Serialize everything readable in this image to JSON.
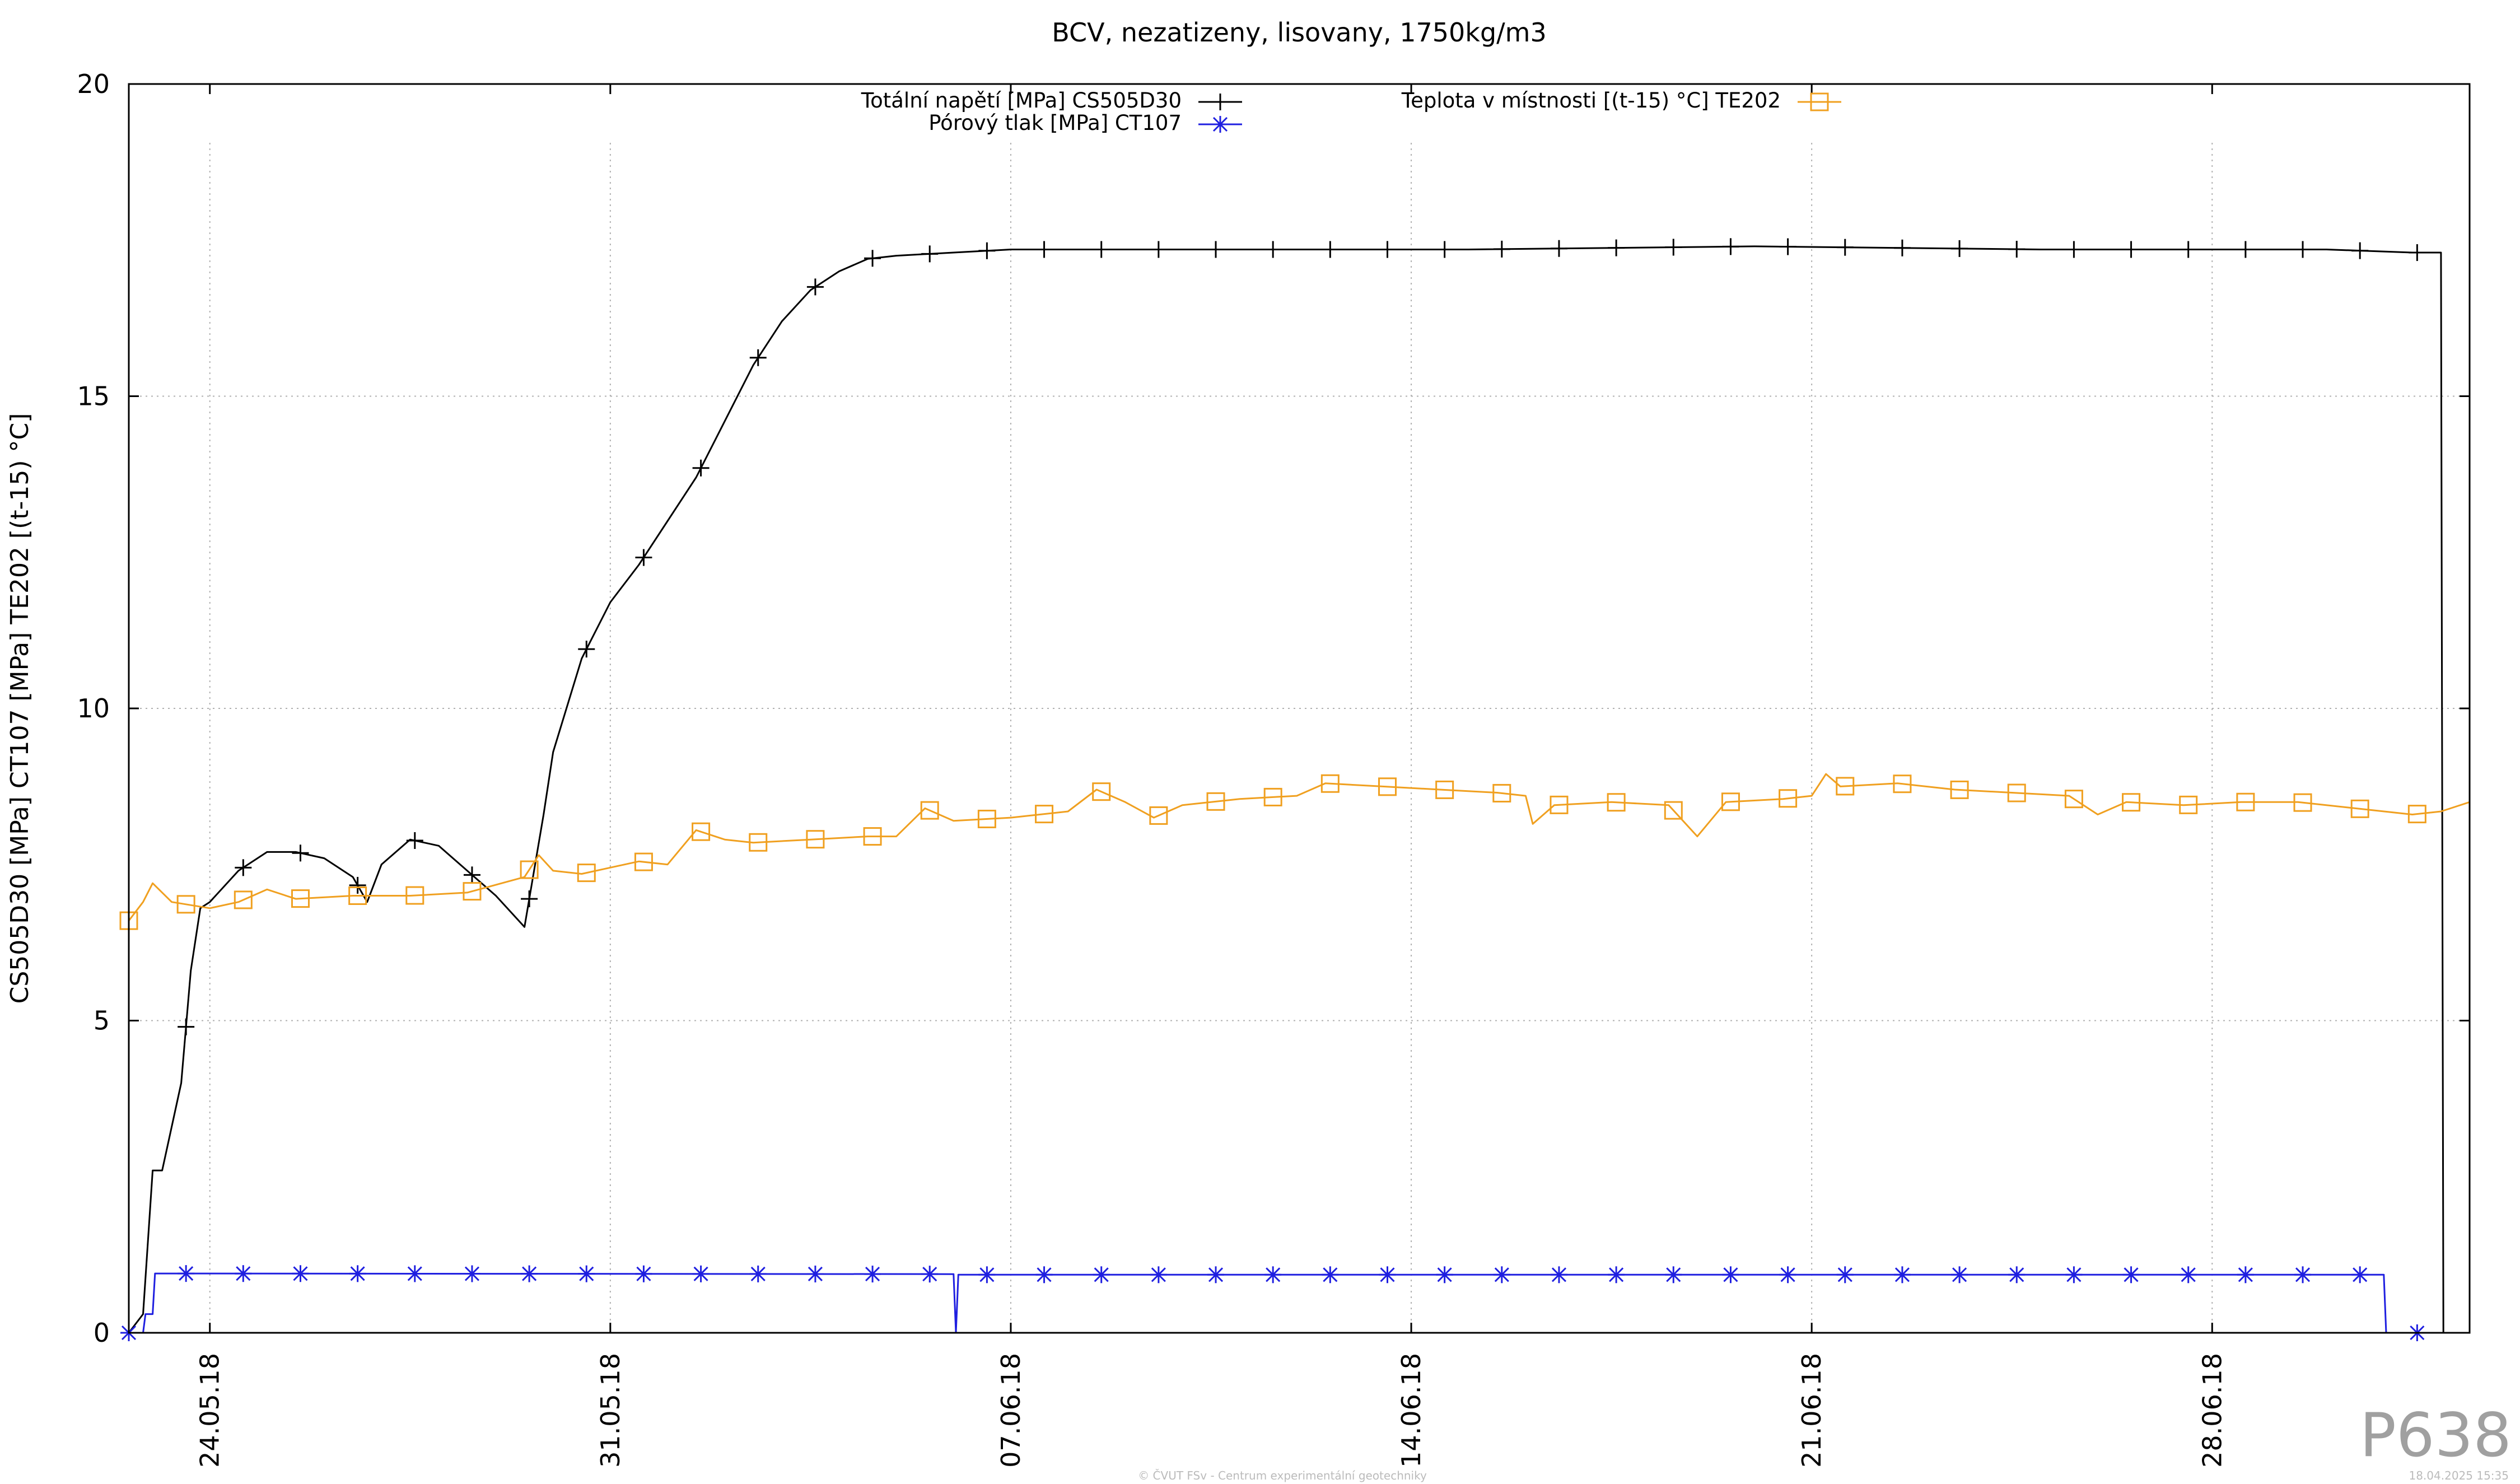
{
  "chart_data": {
    "type": "line",
    "title": "BCV, nezatizeny, lisovany, 1750kg/m3",
    "ylabel": "CS505D30 [MPa] CT107 [MPa] TE202 [(t-15) °C]",
    "xlabel": "",
    "ylim": [
      0,
      20
    ],
    "xlim": [
      "2018-05-22T14:00",
      "2018-07-02T12:00"
    ],
    "yticks": [
      {
        "value": 0,
        "label": "0"
      },
      {
        "value": 5,
        "label": "5"
      },
      {
        "value": 10,
        "label": "10"
      },
      {
        "value": 15,
        "label": "15"
      },
      {
        "value": 20,
        "label": "20"
      }
    ],
    "xticks": [
      {
        "value": "2018-05-24",
        "label": "24.05.18"
      },
      {
        "value": "2018-05-31",
        "label": "31.05.18"
      },
      {
        "value": "2018-06-07",
        "label": "07.06.18"
      },
      {
        "value": "2018-06-14",
        "label": "14.06.18"
      },
      {
        "value": "2018-06-21",
        "label": "21.06.18"
      },
      {
        "value": "2018-06-28",
        "label": "28.06.18"
      }
    ],
    "grid": true,
    "legend_position": "top-center",
    "series": [
      {
        "name": "Totální napětí [MPa] CS505D30",
        "color": "#000000",
        "marker": "plus",
        "points": [
          [
            "2018-05-22T14:00",
            0.0
          ],
          [
            "2018-05-22T20:00",
            0.3
          ],
          [
            "2018-05-23T00:00",
            2.6
          ],
          [
            "2018-05-23T04:00",
            2.6
          ],
          [
            "2018-05-23T08:00",
            3.3
          ],
          [
            "2018-05-23T12:00",
            4.0
          ],
          [
            "2018-05-23T16:00",
            5.8
          ],
          [
            "2018-05-23T20:00",
            6.8
          ],
          [
            "2018-05-24T00:00",
            6.9
          ],
          [
            "2018-05-24T12:00",
            7.4
          ],
          [
            "2018-05-25T00:00",
            7.7
          ],
          [
            "2018-05-25T12:00",
            7.7
          ],
          [
            "2018-05-26T00:00",
            7.6
          ],
          [
            "2018-05-26T12:00",
            7.3
          ],
          [
            "2018-05-26T18:00",
            6.9
          ],
          [
            "2018-05-27T00:00",
            7.5
          ],
          [
            "2018-05-27T12:00",
            7.9
          ],
          [
            "2018-05-28T00:00",
            7.8
          ],
          [
            "2018-05-28T12:00",
            7.4
          ],
          [
            "2018-05-29T00:00",
            7.0
          ],
          [
            "2018-05-29T12:00",
            6.5
          ],
          [
            "2018-05-29T20:00",
            8.3
          ],
          [
            "2018-05-30T00:00",
            9.3
          ],
          [
            "2018-05-30T12:00",
            10.8
          ],
          [
            "2018-05-31T00:00",
            11.7
          ],
          [
            "2018-05-31T12:00",
            12.3
          ],
          [
            "2018-06-01T00:00",
            13.0
          ],
          [
            "2018-06-01T12:00",
            13.7
          ],
          [
            "2018-06-02T00:00",
            14.6
          ],
          [
            "2018-06-02T12:00",
            15.5
          ],
          [
            "2018-06-03T00:00",
            16.2
          ],
          [
            "2018-06-03T12:00",
            16.7
          ],
          [
            "2018-06-04T00:00",
            17.0
          ],
          [
            "2018-06-04T12:00",
            17.2
          ],
          [
            "2018-06-05T00:00",
            17.25
          ],
          [
            "2018-06-06T00:00",
            17.3
          ],
          [
            "2018-06-07T00:00",
            17.35
          ],
          [
            "2018-06-10T00:00",
            17.35
          ],
          [
            "2018-06-15T00:00",
            17.35
          ],
          [
            "2018-06-20T00:00",
            17.4
          ],
          [
            "2018-06-25T00:00",
            17.35
          ],
          [
            "2018-06-30T00:00",
            17.35
          ],
          [
            "2018-07-01T12:00",
            17.3
          ],
          [
            "2018-07-02T00:00",
            17.3
          ],
          [
            "2018-07-02T01:00",
            0.0
          ],
          [
            "2018-07-02T12:00",
            0.0
          ]
        ]
      },
      {
        "name": "Pórový tlak [MPa] CT107",
        "color": "#1f1fe0",
        "marker": "asterisk",
        "points": [
          [
            "2018-05-22T14:00",
            0.0
          ],
          [
            "2018-05-22T20:00",
            0.0
          ],
          [
            "2018-05-22T21:00",
            0.3
          ],
          [
            "2018-05-23T00:00",
            0.3
          ],
          [
            "2018-05-23T01:00",
            0.95
          ],
          [
            "2018-06-06T00:00",
            0.94
          ],
          [
            "2018-06-06T01:00",
            0.0
          ],
          [
            "2018-06-06T02:00",
            0.93
          ],
          [
            "2018-07-01T00:00",
            0.93
          ],
          [
            "2018-07-01T01:00",
            0.0
          ],
          [
            "2018-07-02T12:00",
            0.0
          ]
        ]
      },
      {
        "name": "Teplota v místnosti [(t-15) °C] TE202",
        "color": "#f0a020",
        "marker": "square",
        "points": [
          [
            "2018-05-22T14:00",
            6.6
          ],
          [
            "2018-05-22T20:00",
            6.9
          ],
          [
            "2018-05-23T00:00",
            7.2
          ],
          [
            "2018-05-23T08:00",
            6.9
          ],
          [
            "2018-05-24T00:00",
            6.8
          ],
          [
            "2018-05-24T12:00",
            6.9
          ],
          [
            "2018-05-25T00:00",
            7.1
          ],
          [
            "2018-05-25T12:00",
            6.95
          ],
          [
            "2018-05-26T12:00",
            7.0
          ],
          [
            "2018-05-27T12:00",
            7.0
          ],
          [
            "2018-05-28T12:00",
            7.05
          ],
          [
            "2018-05-29T12:00",
            7.3
          ],
          [
            "2018-05-29T18:00",
            7.65
          ],
          [
            "2018-05-30T00:00",
            7.4
          ],
          [
            "2018-05-30T12:00",
            7.35
          ],
          [
            "2018-05-31T00:00",
            7.45
          ],
          [
            "2018-05-31T12:00",
            7.55
          ],
          [
            "2018-06-01T00:00",
            7.5
          ],
          [
            "2018-06-01T12:00",
            8.05
          ],
          [
            "2018-06-02T00:00",
            7.9
          ],
          [
            "2018-06-02T12:00",
            7.85
          ],
          [
            "2018-06-03T12:00",
            7.9
          ],
          [
            "2018-06-04T12:00",
            7.95
          ],
          [
            "2018-06-05T00:00",
            7.95
          ],
          [
            "2018-06-05T12:00",
            8.4
          ],
          [
            "2018-06-06T00:00",
            8.2
          ],
          [
            "2018-06-07T00:00",
            8.25
          ],
          [
            "2018-06-08T00:00",
            8.35
          ],
          [
            "2018-06-08T12:00",
            8.7
          ],
          [
            "2018-06-09T00:00",
            8.5
          ],
          [
            "2018-06-09T12:00",
            8.25
          ],
          [
            "2018-06-10T00:00",
            8.45
          ],
          [
            "2018-06-11T00:00",
            8.55
          ],
          [
            "2018-06-12T00:00",
            8.6
          ],
          [
            "2018-06-12T12:00",
            8.8
          ],
          [
            "2018-06-13T12:00",
            8.75
          ],
          [
            "2018-06-14T12:00",
            8.7
          ],
          [
            "2018-06-15T12:00",
            8.65
          ],
          [
            "2018-06-16T00:00",
            8.6
          ],
          [
            "2018-06-16T03:00",
            8.15
          ],
          [
            "2018-06-16T12:00",
            8.45
          ],
          [
            "2018-06-17T12:00",
            8.5
          ],
          [
            "2018-06-18T12:00",
            8.45
          ],
          [
            "2018-06-19T00:00",
            7.95
          ],
          [
            "2018-06-19T12:00",
            8.5
          ],
          [
            "2018-06-20T12:00",
            8.55
          ],
          [
            "2018-06-21T00:00",
            8.6
          ],
          [
            "2018-06-21T06:00",
            8.95
          ],
          [
            "2018-06-21T12:00",
            8.75
          ],
          [
            "2018-06-22T12:00",
            8.8
          ],
          [
            "2018-06-23T12:00",
            8.7
          ],
          [
            "2018-06-24T12:00",
            8.65
          ],
          [
            "2018-06-25T12:00",
            8.6
          ],
          [
            "2018-06-26T00:00",
            8.3
          ],
          [
            "2018-06-26T12:00",
            8.5
          ],
          [
            "2018-06-27T12:00",
            8.45
          ],
          [
            "2018-06-28T12:00",
            8.5
          ],
          [
            "2018-06-29T12:00",
            8.5
          ],
          [
            "2018-06-30T12:00",
            8.4
          ],
          [
            "2018-07-01T12:00",
            8.3
          ],
          [
            "2018-07-02T00:00",
            8.35
          ],
          [
            "2018-07-02T12:00",
            8.5
          ]
        ]
      }
    ]
  },
  "footer": {
    "copyright": "© ČVUT FSv - Centrum experimentální geotechniky",
    "timestamp": "18.04.2025 15:35",
    "watermark": "P638"
  }
}
